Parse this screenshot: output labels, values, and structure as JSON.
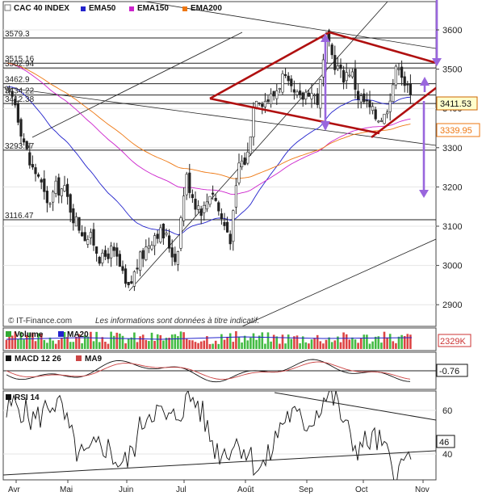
{
  "header": {
    "symbol": "CAC 40 INDEX",
    "legend": [
      {
        "label": "EMA50",
        "color": "#2222cc"
      },
      {
        "label": "EMA150",
        "color": "#cc22cc"
      },
      {
        "label": "EMA200",
        "color": "#ee7711"
      }
    ]
  },
  "watermark": {
    "source": "© IT-Finance.com",
    "disclaimer": "Les informations sont données à titre indicatif."
  },
  "chart_data": [
    {
      "type": "candlestick",
      "title": "CAC 40 INDEX",
      "y_axis": {
        "ticks": [
          2900,
          3000,
          3100,
          3200,
          3300,
          3400,
          3500,
          3600
        ],
        "ylim": [
          2870,
          3680
        ]
      },
      "x_axis": {
        "labels": [
          "Avr",
          "Mai",
          "Juin",
          "Jul",
          "Août",
          "Sep",
          "Oct",
          "Nov"
        ]
      },
      "last_price": {
        "value": "3411.53",
        "color": "#cc6600"
      },
      "ema200_value": {
        "value": "3339.95",
        "color": "#ee7711"
      },
      "level_labels": [
        "3579.3",
        "3515.16",
        "3502.94",
        "3462.9",
        "3434.22",
        "3412.38",
        "3293.67",
        "3116.47"
      ],
      "levels": [
        3579.3,
        3515.16,
        3502.94,
        3462.9,
        3434.22,
        3412.38,
        3293.67,
        3116.47
      ],
      "series": [
        {
          "name": "EMA50",
          "color": "#2222cc"
        },
        {
          "name": "EMA150",
          "color": "#cc22cc"
        },
        {
          "name": "EMA200",
          "color": "#ee7711"
        }
      ],
      "annotations": [
        "symmetric-triangle",
        "broadening-pattern",
        "target-arrows"
      ]
    },
    {
      "type": "bar",
      "title": "Volume",
      "series": [
        {
          "name": "Volume"
        },
        {
          "name": "MA20"
        }
      ],
      "last_value": "2329K"
    },
    {
      "type": "line",
      "title": "MACD 12 26",
      "series": [
        {
          "name": "MACD 12 26"
        },
        {
          "name": "MA9"
        }
      ],
      "last_value": "-0.76"
    },
    {
      "type": "line",
      "title": "RSI 14",
      "y_axis": {
        "ticks": [
          40,
          60
        ],
        "ylim": [
          30,
          70
        ]
      },
      "last_value": "46"
    }
  ],
  "panels": {
    "volume": {
      "label": "Volume",
      "ma_label": "MA20",
      "value": "2329K"
    },
    "macd": {
      "label": "MACD 12 26",
      "ma_label": "MA9",
      "value": "-0.76"
    },
    "rsi": {
      "label": "RSI 14",
      "value": "46"
    }
  }
}
